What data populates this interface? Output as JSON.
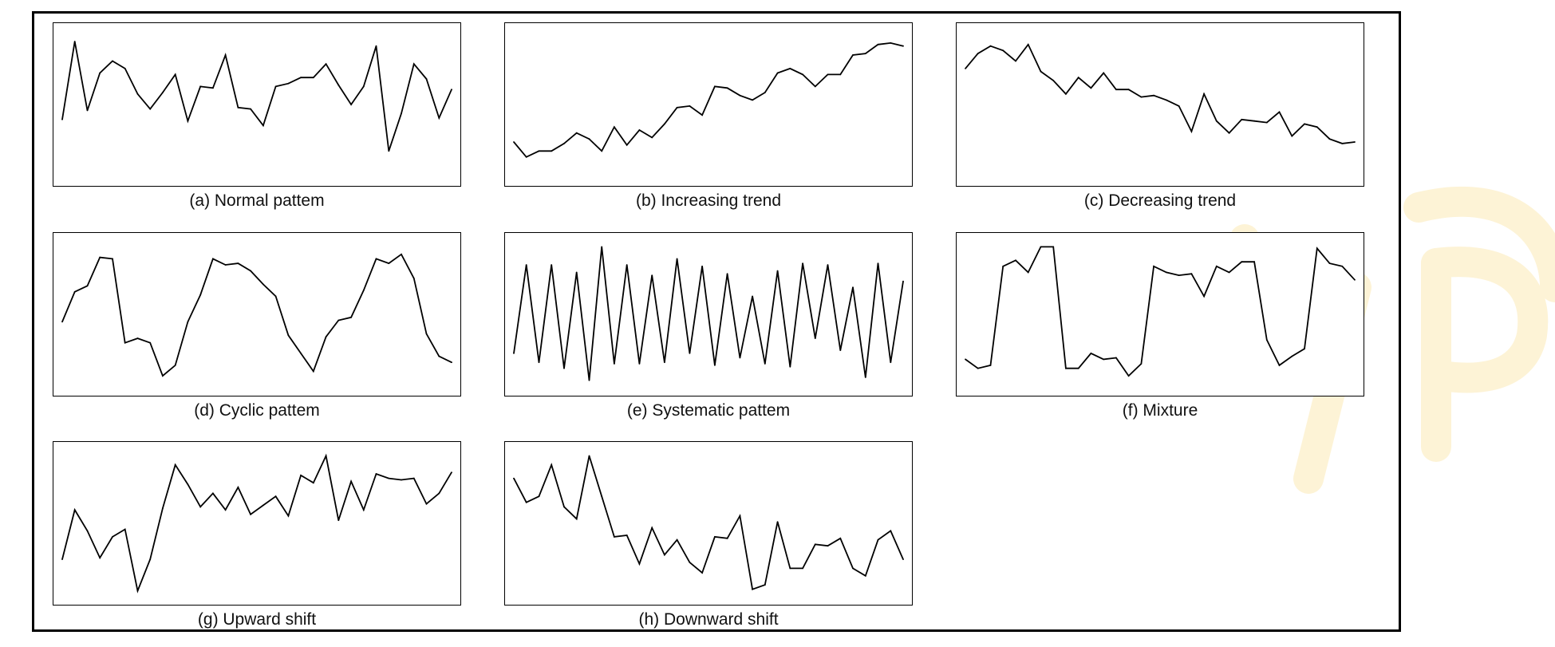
{
  "colors": {
    "line": "#000000",
    "frame": "#000000",
    "watermark": "#fdf3d6"
  },
  "chart_data": [
    {
      "type": "line",
      "caption": "(a) Normal pattem",
      "values": [
        40,
        92,
        46,
        71,
        79,
        74,
        57,
        47,
        58,
        70,
        39,
        62,
        61,
        83,
        48,
        47,
        36,
        62,
        64,
        68,
        68,
        77,
        63,
        50,
        62,
        89,
        19,
        44,
        77,
        67,
        41,
        60
      ]
    },
    {
      "type": "line",
      "caption": "(b) Increasing trend",
      "values": [
        25,
        15,
        19,
        19,
        24,
        31,
        27,
        19,
        35,
        23,
        33,
        28,
        37,
        48,
        49,
        43,
        62,
        61,
        56,
        53,
        58,
        71,
        74,
        70,
        62,
        70,
        70,
        83,
        84,
        90,
        91,
        89
      ]
    },
    {
      "type": "line",
      "caption": "(c) Decreasing trend",
      "values": [
        74,
        84,
        89,
        86,
        79,
        90,
        72,
        66,
        57,
        68,
        61,
        71,
        60,
        60,
        55,
        56,
        53,
        49,
        32,
        57,
        39,
        31,
        40,
        39,
        38,
        45,
        29,
        37,
        35,
        27,
        24,
        25
      ]
    },
    {
      "type": "line",
      "caption": "(d) Cyclic pattem",
      "values": [
        45,
        65,
        69,
        88,
        87,
        31,
        34,
        31,
        9,
        16,
        45,
        63,
        87,
        83,
        84,
        79,
        70,
        62,
        36,
        24,
        12,
        35,
        46,
        48,
        66,
        87,
        84,
        90,
        74,
        37,
        22,
        18
      ]
    },
    {
      "type": "line",
      "caption": "(e) Systematic pattem",
      "values": [
        24,
        83,
        18,
        83,
        14,
        78,
        6,
        95,
        17,
        83,
        17,
        76,
        18,
        87,
        24,
        82,
        16,
        77,
        21,
        62,
        17,
        79,
        15,
        84,
        34,
        83,
        26,
        68,
        8,
        84,
        18,
        72
      ]
    },
    {
      "type": "line",
      "caption": "(f) Mixture",
      "values": [
        20,
        14,
        16,
        82,
        86,
        78,
        95,
        95,
        14,
        14,
        24,
        20,
        21,
        9,
        17,
        82,
        78,
        76,
        77,
        62,
        82,
        78,
        85,
        85,
        33,
        16,
        22,
        27,
        94,
        84,
        82,
        73
      ]
    },
    {
      "type": "line",
      "caption": "(g) Upward shift",
      "values": [
        26,
        59,
        45,
        27,
        41,
        46,
        5,
        26,
        60,
        89,
        76,
        61,
        70,
        59,
        74,
        56,
        62,
        68,
        55,
        82,
        77,
        95,
        52,
        78,
        59,
        83,
        80,
        79,
        80,
        63,
        70,
        84
      ]
    },
    {
      "type": "line",
      "caption": "(h) Downward shift",
      "values": [
        80,
        64,
        68,
        89,
        61,
        53,
        95,
        68,
        41,
        42,
        23,
        47,
        29,
        39,
        24,
        17,
        41,
        40,
        55,
        6,
        9,
        51,
        20,
        20,
        36,
        35,
        40,
        20,
        15,
        39,
        45,
        26
      ]
    }
  ]
}
